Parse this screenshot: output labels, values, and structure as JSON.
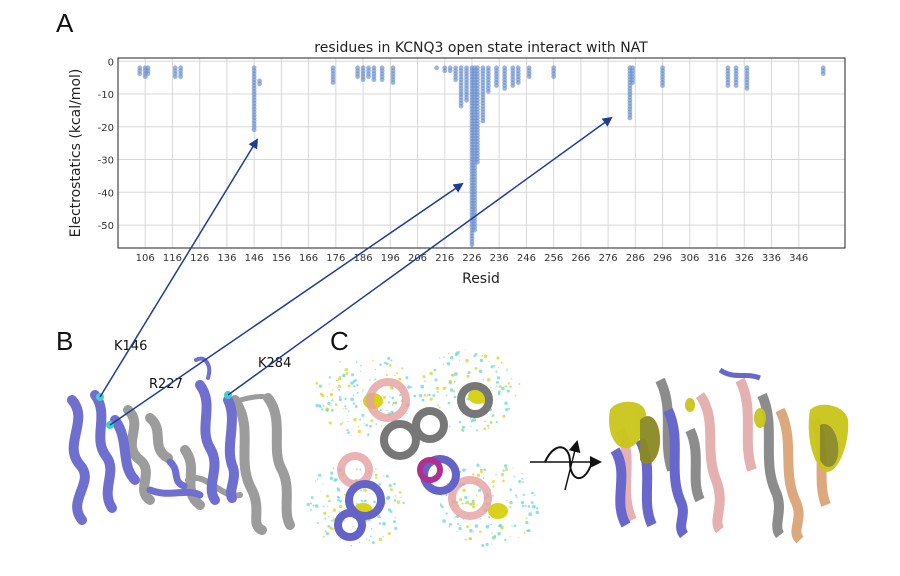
{
  "panels": {
    "a": "A",
    "b": "B",
    "c": "C"
  },
  "labels": {
    "k146": "K146",
    "r227": "R227",
    "k284": "K284"
  },
  "colors": {
    "points": "#6a8fcc",
    "arrow": "#1f3c96",
    "helix_blue": "#7070d0",
    "helix_gray": "#a8a8a8",
    "density_yellow": "#d8d21a",
    "density_cyan": "#5fd6d6",
    "helix_red": "#d99090",
    "helix_orange": "#d8a070",
    "density_olive": "#8a8a22"
  },
  "chart_data": {
    "type": "scatter",
    "title": "residues in KCNQ3 open state interact with NAT",
    "xlabel": "Resid",
    "ylabel": "Electrostatics (kcal/mol)",
    "xlim": [
      96,
      363
    ],
    "ylim": [
      -57,
      1
    ],
    "xticks": [
      106,
      116,
      126,
      136,
      146,
      156,
      166,
      176,
      186,
      196,
      206,
      216,
      226,
      236,
      246,
      256,
      266,
      276,
      286,
      296,
      306,
      316,
      326,
      336,
      346
    ],
    "yticks": [
      0,
      -10,
      -20,
      -30,
      -40,
      -50
    ],
    "grid": true,
    "columns": [
      {
        "x": 104,
        "min": -4,
        "max": -2
      },
      {
        "x": 106,
        "min": -5,
        "max": -2
      },
      {
        "x": 107,
        "min": -4,
        "max": -2
      },
      {
        "x": 117,
        "min": -5,
        "max": -2
      },
      {
        "x": 119,
        "min": -5,
        "max": -2
      },
      {
        "x": 146,
        "min": -21,
        "max": -2
      },
      {
        "x": 148,
        "min": -7,
        "max": -6
      },
      {
        "x": 175,
        "min": -7,
        "max": -2
      },
      {
        "x": 184,
        "min": -5,
        "max": -2
      },
      {
        "x": 186,
        "min": -6,
        "max": -2
      },
      {
        "x": 188,
        "min": -5,
        "max": -2
      },
      {
        "x": 190,
        "min": -6,
        "max": -2
      },
      {
        "x": 193,
        "min": -6,
        "max": -2
      },
      {
        "x": 197,
        "min": -7,
        "max": -2
      },
      {
        "x": 213,
        "min": -2,
        "max": -2
      },
      {
        "x": 216,
        "min": -3,
        "max": -2
      },
      {
        "x": 218,
        "min": -3,
        "max": -2
      },
      {
        "x": 220,
        "min": -6,
        "max": -2
      },
      {
        "x": 222,
        "min": -14,
        "max": -2
      },
      {
        "x": 224,
        "min": -12,
        "max": -2
      },
      {
        "x": 226,
        "min": -56,
        "max": -2
      },
      {
        "x": 227,
        "min": -52,
        "max": -2
      },
      {
        "x": 228,
        "min": -31,
        "max": -2
      },
      {
        "x": 230,
        "min": -19,
        "max": -2
      },
      {
        "x": 232,
        "min": -10,
        "max": -2
      },
      {
        "x": 235,
        "min": -8,
        "max": -2
      },
      {
        "x": 238,
        "min": -9,
        "max": -2
      },
      {
        "x": 241,
        "min": -8,
        "max": -2
      },
      {
        "x": 243,
        "min": -7,
        "max": -2
      },
      {
        "x": 247,
        "min": -5,
        "max": -2
      },
      {
        "x": 256,
        "min": -5,
        "max": -2
      },
      {
        "x": 284,
        "min": -18,
        "max": -2
      },
      {
        "x": 285,
        "min": -7,
        "max": -2
      },
      {
        "x": 296,
        "min": -8,
        "max": -2
      },
      {
        "x": 320,
        "min": -8,
        "max": -2
      },
      {
        "x": 323,
        "min": -8,
        "max": -2
      },
      {
        "x": 327,
        "min": -9,
        "max": -2
      },
      {
        "x": 355,
        "min": -4,
        "max": -2
      }
    ]
  }
}
